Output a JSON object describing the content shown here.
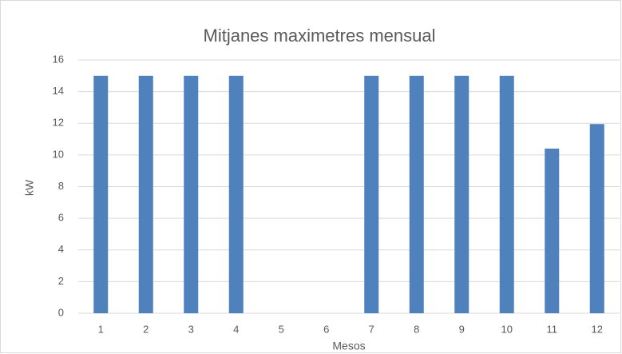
{
  "chart_data": {
    "type": "bar",
    "title": "Mitjanes maximetres mensual",
    "x_label": "Mesos",
    "y_label": "kW",
    "categories": [
      "1",
      "2",
      "3",
      "4",
      "5",
      "6",
      "7",
      "8",
      "9",
      "10",
      "11",
      "12"
    ],
    "values": [
      15,
      15,
      15,
      15,
      0,
      0,
      15,
      15,
      15,
      15,
      10.4,
      11.95
    ],
    "color": "#4f81bd",
    "ylim": [
      0,
      16
    ],
    "yticks": [
      0,
      2,
      4,
      6,
      8,
      10,
      12,
      14,
      16
    ],
    "grid": true
  }
}
